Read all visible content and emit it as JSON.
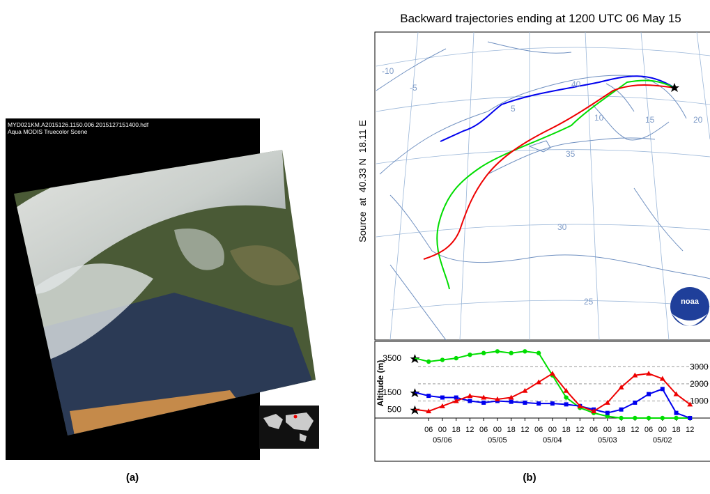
{
  "panel_a": {
    "header": [
      "MYD021KM.A2015126.1150.006.2015127151400.hdf",
      "Aqua MODIS Truecolor Scene"
    ],
    "caption": "(a)"
  },
  "chart_data": {
    "type": "line",
    "title": "Backward trajectories ending at 1200 UTC 06 May 15",
    "source_label": "Source  at  40.33 N  18.11 E",
    "map_labels": [
      "-10",
      "-5",
      "5",
      "10",
      "15",
      "20",
      "25",
      "30",
      "35",
      "40"
    ],
    "logo": "noaa",
    "y_label": "Altitude (m)",
    "caption": "(b)",
    "x": [
      0,
      6,
      12,
      18,
      24,
      30,
      36,
      42,
      48,
      54,
      60,
      66,
      72,
      78,
      84,
      90,
      96,
      102,
      108,
      114,
      120
    ],
    "xlim": [
      -5,
      126
    ],
    "xticks": [
      {
        "value": 6,
        "label": "06"
      },
      {
        "value": 12,
        "label": "00"
      },
      18,
      {
        "value": 24,
        "label": "12"
      },
      {
        "value": 30,
        "label": "06"
      },
      {
        "value": 36,
        "label": "00"
      },
      {
        "value": 42,
        "label": "18"
      },
      {
        "value": 48,
        "label": "12"
      },
      {
        "value": 54,
        "label": "06"
      },
      {
        "value": 60,
        "label": "00"
      },
      {
        "value": 66,
        "label": "18"
      },
      {
        "value": 72,
        "label": "12"
      },
      {
        "value": 78,
        "label": "06"
      },
      {
        "value": 84,
        "label": "00"
      },
      {
        "value": 90,
        "label": "18"
      },
      {
        "value": 96,
        "label": "12"
      },
      {
        "value": 102,
        "label": "06"
      },
      {
        "value": 108,
        "label": "00"
      },
      {
        "value": 114,
        "label": "18"
      },
      {
        "value": 120,
        "label": "12"
      }
    ],
    "date_labels": [
      {
        "value": 12,
        "label": "05/06"
      },
      {
        "value": 36,
        "label": "05/05"
      },
      {
        "value": 60,
        "label": "05/04"
      },
      {
        "value": 84,
        "label": "05/03"
      },
      {
        "value": 108,
        "label": "05/02"
      }
    ],
    "ylim": [
      0,
      4400
    ],
    "yticks": [
      500,
      1500,
      3500
    ],
    "y2lim": [
      0,
      4400
    ],
    "y2ticks": [
      1000,
      2000,
      3000
    ],
    "grid": true,
    "series": [
      {
        "color": "#00dd00",
        "marker": "circle",
        "values": [
          3500,
          3300,
          3400,
          3500,
          3700,
          3800,
          3900,
          3800,
          3900,
          3800,
          2500,
          1200,
          600,
          300,
          100,
          0,
          0,
          0,
          0,
          0,
          0
        ]
      },
      {
        "color": "#0000ee",
        "marker": "square",
        "values": [
          1500,
          1300,
          1200,
          1200,
          1000,
          900,
          1000,
          950,
          900,
          850,
          850,
          800,
          700,
          500,
          300,
          500,
          900,
          1400,
          1700,
          300,
          0
        ]
      },
      {
        "color": "#ee0000",
        "marker": "triangle",
        "values": [
          500,
          400,
          700,
          1000,
          1300,
          1200,
          1100,
          1200,
          1600,
          2100,
          2600,
          1600,
          700,
          400,
          900,
          1800,
          2500,
          2600,
          2300,
          1400,
          800
        ]
      }
    ]
  }
}
